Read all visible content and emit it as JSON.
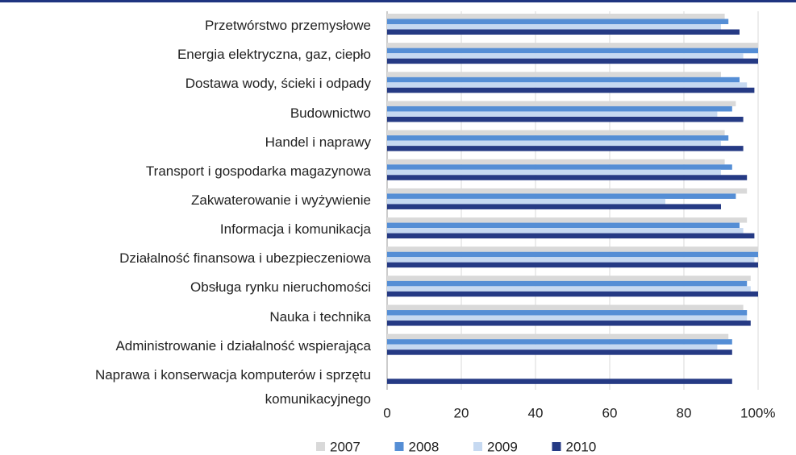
{
  "chart_data": {
    "type": "bar",
    "orientation": "horizontal",
    "categories": [
      "Przetwórstwo przemysłowe",
      "Energia elektryczna, gaz, ciepło",
      "Dostawa wody, ścieki i odpady",
      "Budownictwo",
      "Handel i naprawy",
      "Transport i gospodarka magazynowa",
      "Zakwaterowanie i wyżywienie",
      "Informacja i komunikacja",
      "Działalność finansowa i ubezpieczeniowa",
      "Obsługa rynku nieruchomości",
      "Nauka i technika",
      "Administrowanie i działalność wspierająca",
      "Naprawa i konserwacja komputerów i sprzętu komunikacyjnego"
    ],
    "series": [
      {
        "name": "2007",
        "color": "#d9d9d9",
        "values": [
          91,
          100,
          90,
          94,
          91,
          91,
          97,
          97,
          100,
          98,
          96,
          92,
          null
        ]
      },
      {
        "name": "2008",
        "color": "#558ed5",
        "values": [
          92,
          100,
          95,
          93,
          92,
          93,
          94,
          95,
          100,
          97,
          97,
          93,
          null
        ]
      },
      {
        "name": "2009",
        "color": "#c6d9f1",
        "values": [
          90,
          96,
          97,
          89,
          90,
          90,
          75,
          96,
          99,
          98,
          97,
          89,
          null
        ]
      },
      {
        "name": "2010",
        "color": "#253a84",
        "values": [
          95,
          100,
          99,
          96,
          96,
          97,
          90,
          99,
          100,
          100,
          98,
          93,
          93
        ]
      }
    ],
    "xlim": [
      0,
      100
    ],
    "xticks": [
      0,
      20,
      40,
      60,
      80,
      {
        "value": 100,
        "label": "100%"
      }
    ],
    "grid": true,
    "legend": "bottom"
  }
}
